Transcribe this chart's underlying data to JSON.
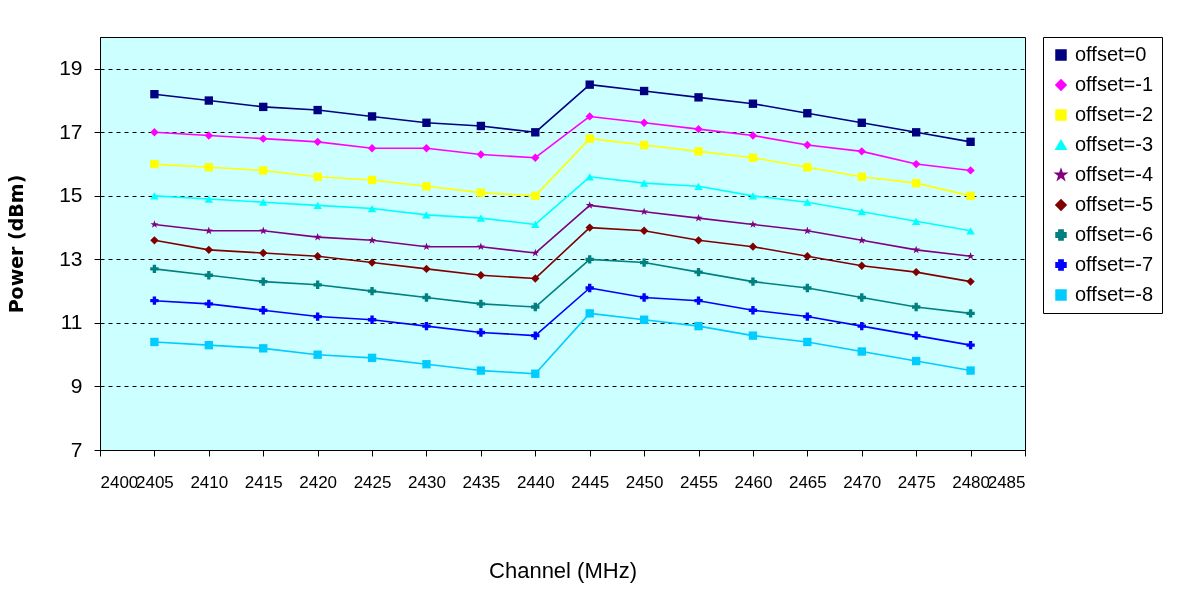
{
  "chart_data": {
    "type": "line",
    "xlabel": "Channel (MHz)",
    "ylabel": "Power (dBm)",
    "x": [
      2405,
      2410,
      2415,
      2420,
      2425,
      2430,
      2435,
      2440,
      2445,
      2450,
      2455,
      2460,
      2465,
      2470,
      2475,
      2480
    ],
    "xlim": [
      2400,
      2485
    ],
    "xticks": [
      2400,
      2405,
      2410,
      2415,
      2420,
      2425,
      2430,
      2435,
      2440,
      2445,
      2450,
      2455,
      2460,
      2465,
      2470,
      2475,
      2480,
      2485
    ],
    "ylim": [
      7,
      20
    ],
    "yticks": [
      7,
      9,
      11,
      13,
      15,
      17,
      19
    ],
    "grid": "y",
    "legend": "right",
    "line_style": "solid",
    "series": [
      {
        "name": "offset=0",
        "color": "#000080",
        "marker": "square",
        "values": [
          18.2,
          18.0,
          17.8,
          17.7,
          17.5,
          17.3,
          17.2,
          17.0,
          18.5,
          18.3,
          18.1,
          17.9,
          17.6,
          17.3,
          17.0,
          16.7
        ]
      },
      {
        "name": "offset=-1",
        "color": "#ff00ff",
        "marker": "diamond",
        "values": [
          17.0,
          16.9,
          16.8,
          16.7,
          16.5,
          16.5,
          16.3,
          16.2,
          17.5,
          17.3,
          17.1,
          16.9,
          16.6,
          16.4,
          16.0,
          15.8
        ]
      },
      {
        "name": "offset=-2",
        "color": "#ffff00",
        "marker": "square",
        "values": [
          16.0,
          15.9,
          15.8,
          15.6,
          15.5,
          15.3,
          15.1,
          15.0,
          16.8,
          16.6,
          16.4,
          16.2,
          15.9,
          15.6,
          15.4,
          15.0
        ]
      },
      {
        "name": "offset=-3",
        "color": "#00ffff",
        "marker": "triangle",
        "values": [
          15.0,
          14.9,
          14.8,
          14.7,
          14.6,
          14.4,
          14.3,
          14.1,
          15.6,
          15.4,
          15.3,
          15.0,
          14.8,
          14.5,
          14.2,
          13.9
        ]
      },
      {
        "name": "offset=-4",
        "color": "#800080",
        "marker": "star",
        "values": [
          14.1,
          13.9,
          13.9,
          13.7,
          13.6,
          13.4,
          13.4,
          13.2,
          14.7,
          14.5,
          14.3,
          14.1,
          13.9,
          13.6,
          13.3,
          13.1
        ]
      },
      {
        "name": "offset=-5",
        "color": "#800000",
        "marker": "diamond",
        "values": [
          13.6,
          13.3,
          13.2,
          13.1,
          12.9,
          12.7,
          12.5,
          12.4,
          14.0,
          13.9,
          13.6,
          13.4,
          13.1,
          12.8,
          12.6,
          12.3
        ]
      },
      {
        "name": "offset=-6",
        "color": "#008080",
        "marker": "cross",
        "values": [
          12.7,
          12.5,
          12.3,
          12.2,
          12.0,
          11.8,
          11.6,
          11.5,
          13.0,
          12.9,
          12.6,
          12.3,
          12.1,
          11.8,
          11.5,
          11.3
        ]
      },
      {
        "name": "offset=-7",
        "color": "#0000ff",
        "marker": "cross",
        "values": [
          11.7,
          11.6,
          11.4,
          11.2,
          11.1,
          10.9,
          10.7,
          10.6,
          12.1,
          11.8,
          11.7,
          11.4,
          11.2,
          10.9,
          10.6,
          10.3
        ]
      },
      {
        "name": "offset=-8",
        "color": "#00ccff",
        "marker": "square",
        "values": [
          10.4,
          10.3,
          10.2,
          10.0,
          9.9,
          9.7,
          9.5,
          9.4,
          11.3,
          11.1,
          10.9,
          10.6,
          10.4,
          10.1,
          9.8,
          9.5
        ]
      }
    ]
  }
}
